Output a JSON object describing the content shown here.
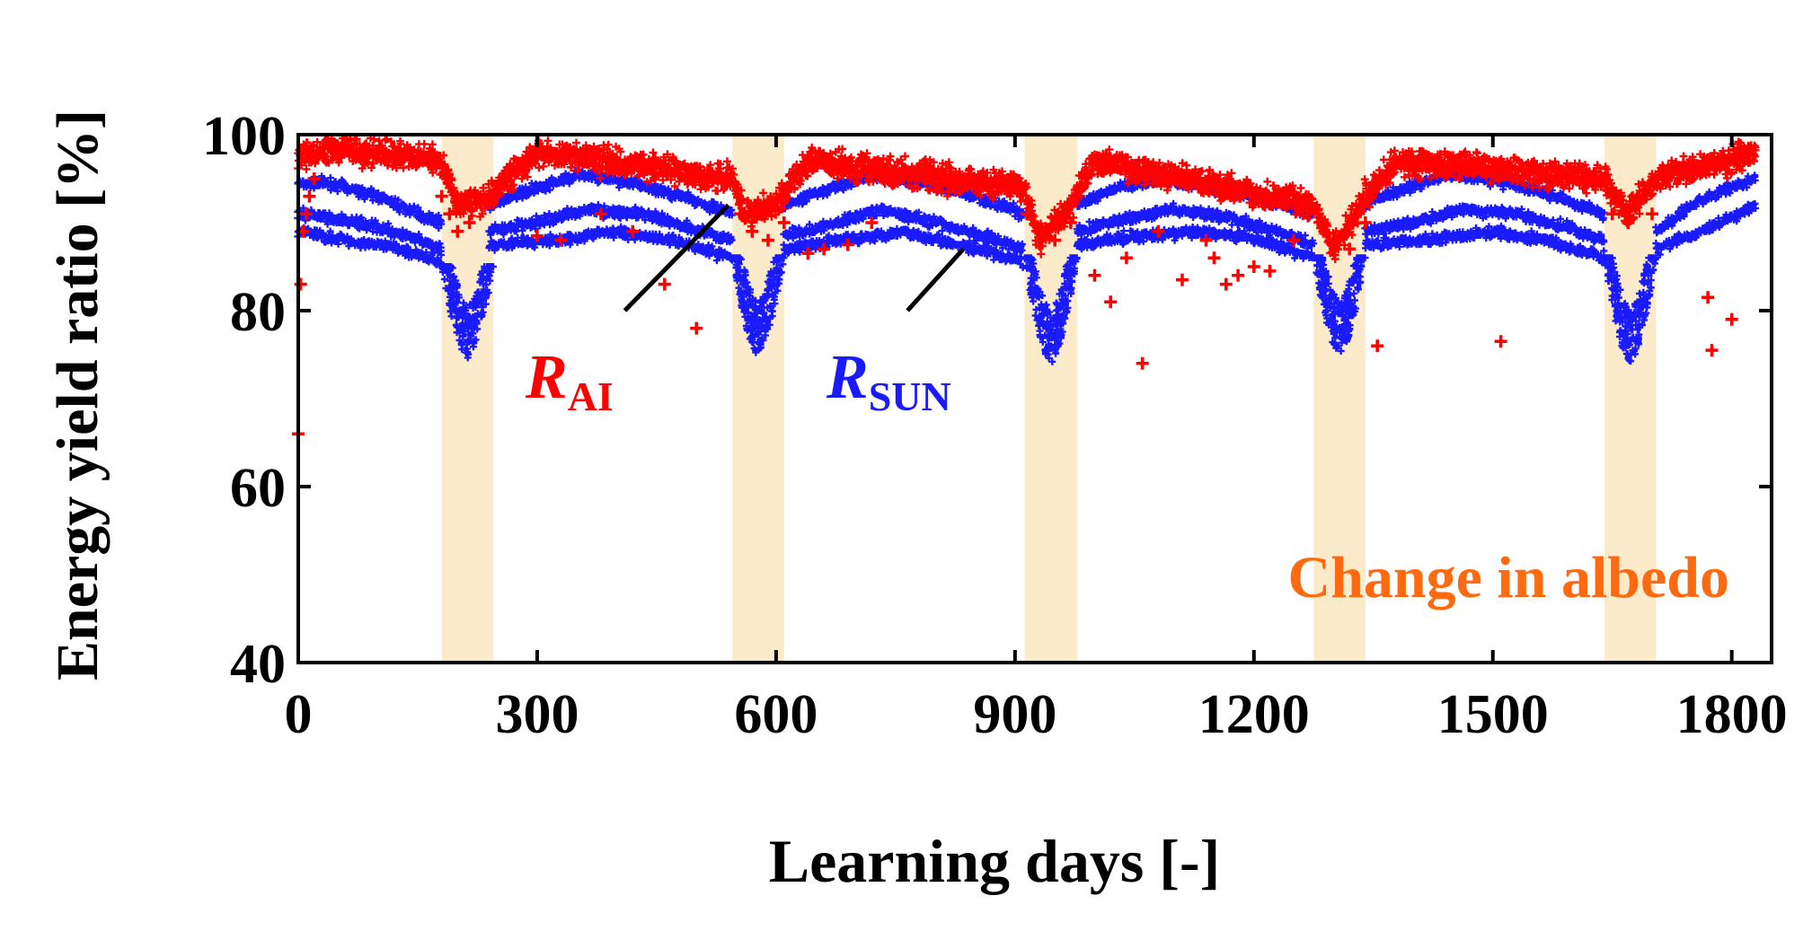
{
  "chart_data": {
    "type": "scatter",
    "xlabel": "Learning days [-]",
    "ylabel": "Energy yield ratio [%]",
    "xlim": [
      0,
      1850
    ],
    "ylim": [
      40,
      100
    ],
    "xticks": [
      0,
      300,
      600,
      900,
      1200,
      1500,
      1800
    ],
    "yticks": [
      40,
      60,
      80,
      100
    ],
    "grid": false,
    "colors": {
      "r_ai": "#ff0000",
      "r_sun": "#1a1aff",
      "albedo_band": "#fbe9c4",
      "annotation": "#ff6a10",
      "axis": "#000000"
    },
    "albedo_bands": [
      {
        "start": 180,
        "end": 245
      },
      {
        "start": 545,
        "end": 610
      },
      {
        "start": 912,
        "end": 978
      },
      {
        "start": 1275,
        "end": 1340
      },
      {
        "start": 1640,
        "end": 1705
      }
    ],
    "series": [
      {
        "key": "r_ai",
        "marker": "plus",
        "label_main": "R",
        "label_sub": "AI",
        "band": [
          0,
          1830,
          97.5,
          2.2
        ],
        "pattern": [
          [
            0,
            97.5
          ],
          [
            50,
            98.5
          ],
          [
            180,
            97
          ],
          [
            200,
            92
          ],
          [
            240,
            93
          ],
          [
            300,
            98
          ],
          [
            545,
            95
          ],
          [
            560,
            91
          ],
          [
            600,
            92
          ],
          [
            640,
            97
          ],
          [
            912,
            94
          ],
          [
            930,
            88
          ],
          [
            970,
            92
          ],
          [
            1000,
            97
          ],
          [
            1275,
            92
          ],
          [
            1300,
            87
          ],
          [
            1340,
            93
          ],
          [
            1380,
            97
          ],
          [
            1640,
            95
          ],
          [
            1670,
            91
          ],
          [
            1705,
            95
          ],
          [
            1830,
            98
          ]
        ],
        "values": [
          [
            0,
            66
          ],
          [
            3,
            83
          ],
          [
            6,
            89
          ],
          [
            10,
            91
          ],
          [
            14,
            93
          ],
          [
            20,
            95
          ],
          [
            180,
            93
          ],
          [
            190,
            91
          ],
          [
            200,
            89
          ],
          [
            215,
            90
          ],
          [
            230,
            92
          ],
          [
            300,
            88.5
          ],
          [
            330,
            88
          ],
          [
            380,
            91
          ],
          [
            420,
            89
          ],
          [
            460,
            83
          ],
          [
            500,
            78
          ],
          [
            555,
            91
          ],
          [
            570,
            89
          ],
          [
            590,
            88
          ],
          [
            610,
            90
          ],
          [
            640,
            86.5
          ],
          [
            660,
            87
          ],
          [
            690,
            87.5
          ],
          [
            720,
            90
          ],
          [
            915,
            91
          ],
          [
            930,
            89
          ],
          [
            950,
            88
          ],
          [
            970,
            90
          ],
          [
            1000,
            84
          ],
          [
            1020,
            81
          ],
          [
            1040,
            86
          ],
          [
            1060,
            74
          ],
          [
            1080,
            89
          ],
          [
            1110,
            83.5
          ],
          [
            1140,
            88
          ],
          [
            1150,
            86
          ],
          [
            1165,
            83
          ],
          [
            1180,
            84
          ],
          [
            1200,
            85
          ],
          [
            1220,
            84.5
          ],
          [
            1250,
            88
          ],
          [
            1280,
            91
          ],
          [
            1300,
            88
          ],
          [
            1320,
            87
          ],
          [
            1340,
            90
          ],
          [
            1355,
            76
          ],
          [
            1510,
            76.5
          ],
          [
            1650,
            91
          ],
          [
            1670,
            90
          ],
          [
            1700,
            91
          ],
          [
            1770,
            81.5
          ],
          [
            1775,
            75.5
          ],
          [
            1800,
            79
          ]
        ]
      },
      {
        "key": "r_sun",
        "marker": "plus",
        "label_main": "R",
        "label_sub": "SUN",
        "curves": [
          [
            [
              0,
              94.5
            ],
            [
              40,
              94.5
            ],
            [
              100,
              93
            ],
            [
              150,
              91
            ],
            [
              180,
              90
            ]
          ],
          [
            [
              0,
              91
            ],
            [
              40,
              90.5
            ],
            [
              100,
              89.5
            ],
            [
              150,
              88
            ],
            [
              180,
              87
            ]
          ],
          [
            [
              0,
              89
            ],
            [
              60,
              88
            ],
            [
              130,
              87
            ],
            [
              180,
              85.5
            ]
          ],
          [
            [
              240,
              92
            ],
            [
              300,
              94
            ],
            [
              350,
              95.5
            ],
            [
              420,
              94.5
            ],
            [
              480,
              93
            ],
            [
              545,
              91
            ]
          ],
          [
            [
              240,
              89
            ],
            [
              300,
              90
            ],
            [
              360,
              91.5
            ],
            [
              430,
              91
            ],
            [
              490,
              89.5
            ],
            [
              545,
              88
            ]
          ],
          [
            [
              240,
              87.5
            ],
            [
              320,
              88
            ],
            [
              400,
              89
            ],
            [
              470,
              88
            ],
            [
              545,
              86
            ]
          ],
          [
            [
              610,
              92
            ],
            [
              660,
              93.5
            ],
            [
              720,
              95.5
            ],
            [
              790,
              94.5
            ],
            [
              850,
              93
            ],
            [
              910,
              91
            ]
          ],
          [
            [
              610,
              88.5
            ],
            [
              660,
              89.5
            ],
            [
              730,
              91.5
            ],
            [
              800,
              90
            ],
            [
              860,
              88.5
            ],
            [
              910,
              87
            ]
          ],
          [
            [
              610,
              87
            ],
            [
              680,
              88
            ],
            [
              760,
              89
            ],
            [
              830,
              87.5
            ],
            [
              910,
              85.5
            ]
          ],
          [
            [
              978,
              92
            ],
            [
              1030,
              94
            ],
            [
              1080,
              95
            ],
            [
              1150,
              94
            ],
            [
              1220,
              92.5
            ],
            [
              1275,
              91
            ]
          ],
          [
            [
              978,
              89
            ],
            [
              1040,
              90.5
            ],
            [
              1100,
              91.5
            ],
            [
              1170,
              90.5
            ],
            [
              1230,
              89
            ],
            [
              1275,
              87.5
            ]
          ],
          [
            [
              978,
              87.5
            ],
            [
              1060,
              88.5
            ],
            [
              1140,
              89
            ],
            [
              1210,
              88
            ],
            [
              1275,
              86
            ]
          ],
          [
            [
              1340,
              92
            ],
            [
              1390,
              94
            ],
            [
              1440,
              95.5
            ],
            [
              1520,
              94.5
            ],
            [
              1580,
              93
            ],
            [
              1640,
              91
            ]
          ],
          [
            [
              1340,
              89
            ],
            [
              1400,
              90
            ],
            [
              1460,
              91.5
            ],
            [
              1530,
              91
            ],
            [
              1590,
              89.5
            ],
            [
              1640,
              88
            ]
          ],
          [
            [
              1340,
              87.5
            ],
            [
              1420,
              88
            ],
            [
              1500,
              89
            ],
            [
              1570,
              88
            ],
            [
              1640,
              86
            ]
          ],
          [
            [
              1705,
              89
            ],
            [
              1750,
              92
            ],
            [
              1800,
              94
            ],
            [
              1830,
              95
            ]
          ],
          [
            [
              1705,
              87
            ],
            [
              1760,
              89
            ],
            [
              1810,
              91
            ],
            [
              1830,
              92
            ]
          ]
        ],
        "dips": [
          [
            180,
            245,
            74.5,
            85
          ],
          [
            545,
            610,
            75,
            86
          ],
          [
            912,
            978,
            74,
            86
          ],
          [
            1275,
            1340,
            75,
            86
          ],
          [
            1640,
            1705,
            74,
            86
          ]
        ]
      }
    ],
    "annotation": "Change in albedo"
  }
}
